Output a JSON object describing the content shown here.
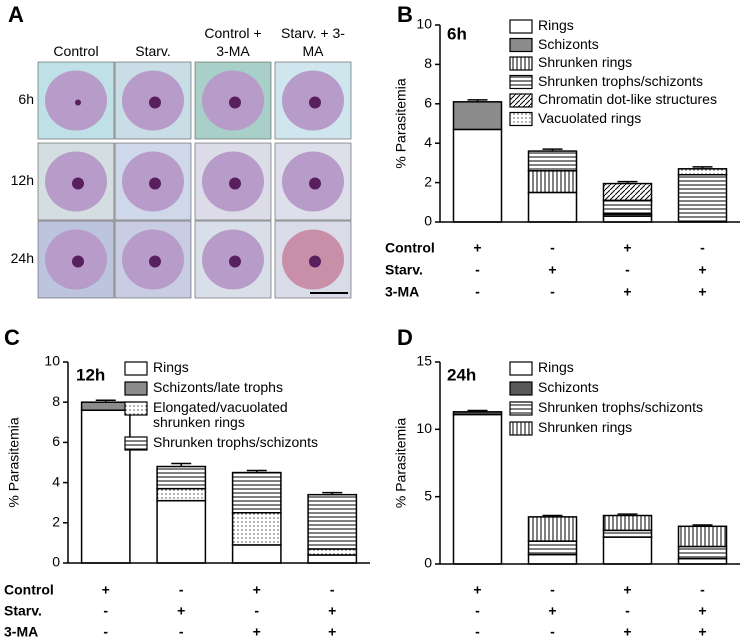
{
  "panel_a": {
    "label": "A",
    "columns": [
      "Control",
      "Starv.",
      "Control + 3-MA",
      "Starv. + 3-MA"
    ],
    "rows": [
      "6h",
      "12h",
      "24h"
    ]
  },
  "chart_data": [
    {
      "type": "bar",
      "stacked": true,
      "panel": "B",
      "title": "6h",
      "y_label": "% Parasitemia",
      "ylim": [
        0,
        10
      ],
      "yticks": [
        0,
        2,
        4,
        6,
        8,
        10
      ],
      "conditions": [
        {
          "name": "Control",
          "signs": [
            "+",
            "-",
            "+",
            "-"
          ]
        },
        {
          "name": "Starv.",
          "signs": [
            "-",
            "+",
            "-",
            "+"
          ]
        },
        {
          "name": "3-MA",
          "signs": [
            "-",
            "-",
            "+",
            "+"
          ]
        }
      ],
      "series": [
        {
          "name": "Rings",
          "color": "#ffffff",
          "pattern": "none",
          "values": [
            4.7,
            1.5,
            0.3,
            0
          ],
          "errors": [
            0.25,
            0.1,
            0.05,
            0
          ]
        },
        {
          "name": "Schizonts",
          "color": "#8c8c8c",
          "pattern": "none",
          "values": [
            1.4,
            0,
            0.1,
            0
          ],
          "errors": [
            0.1,
            0,
            0.05,
            0
          ]
        },
        {
          "name": "Shrunken rings",
          "color": "#ffffff",
          "pattern": "vertical",
          "values": [
            0,
            1.1,
            0,
            0
          ],
          "errors": [
            0,
            0.1,
            0,
            0
          ]
        },
        {
          "name": "Shrunken trophs/schizonts",
          "color": "#ffffff",
          "pattern": "horizontal",
          "values": [
            0,
            1.0,
            0.7,
            2.4
          ],
          "errors": [
            0,
            0.1,
            0.05,
            0.1
          ]
        },
        {
          "name": "Chromatin dot-like structures",
          "color": "#ffffff",
          "pattern": "diagonal",
          "values": [
            0,
            0,
            0.85,
            0
          ],
          "errors": [
            0,
            0,
            0.1,
            0
          ]
        },
        {
          "name": "Vacuolated rings",
          "color": "#ffffff",
          "pattern": "dotted",
          "values": [
            0,
            0,
            0,
            0.3
          ],
          "errors": [
            0,
            0,
            0,
            0.1
          ]
        }
      ]
    },
    {
      "type": "bar",
      "stacked": true,
      "panel": "C",
      "title": "12h",
      "y_label": "% Parasitemia",
      "ylim": [
        0,
        10
      ],
      "yticks": [
        0,
        2,
        4,
        6,
        8,
        10
      ],
      "conditions": [
        {
          "name": "Control",
          "signs": [
            "+",
            "-",
            "+",
            "-"
          ]
        },
        {
          "name": "Starv.",
          "signs": [
            "-",
            "+",
            "-",
            "+"
          ]
        },
        {
          "name": "3-MA",
          "signs": [
            "-",
            "-",
            "+",
            "+"
          ]
        }
      ],
      "series": [
        {
          "name": "Rings",
          "color": "#ffffff",
          "pattern": "none",
          "values": [
            7.6,
            3.1,
            0.9,
            0.4
          ],
          "errors": [
            0.15,
            0.15,
            0.05,
            0.05
          ]
        },
        {
          "name": "Schizonts/late trophs",
          "color": "#8c8c8c",
          "pattern": "none",
          "values": [
            0.4,
            0,
            0,
            0
          ],
          "errors": [
            0.1,
            0,
            0,
            0
          ]
        },
        {
          "name": "Elongated/vacuolated shrunken rings",
          "color": "#ffffff",
          "pattern": "dotted",
          "values": [
            0,
            0.6,
            1.6,
            0.3
          ],
          "errors": [
            0,
            0.1,
            0.1,
            0.05
          ]
        },
        {
          "name": "Shrunken trophs/schizonts",
          "color": "#ffffff",
          "pattern": "horizontal",
          "values": [
            0,
            1.1,
            2.0,
            2.7
          ],
          "errors": [
            0,
            0.15,
            0.1,
            0.1
          ]
        }
      ]
    },
    {
      "type": "bar",
      "stacked": true,
      "panel": "D",
      "title": "24h",
      "y_label": "% Parasitemia",
      "ylim": [
        0,
        15
      ],
      "yticks": [
        0,
        5,
        10,
        15
      ],
      "conditions": [
        {
          "signs": [
            "+",
            "-",
            "+",
            "-"
          ]
        },
        {
          "signs": [
            "-",
            "+",
            "-",
            "+"
          ]
        },
        {
          "signs": [
            "-",
            "-",
            "+",
            "+"
          ]
        }
      ],
      "series": [
        {
          "name": "Rings",
          "color": "#ffffff",
          "pattern": "none",
          "values": [
            11.1,
            0.7,
            2.0,
            0.4
          ],
          "errors": [
            0.2,
            0.1,
            0.2,
            0.1
          ]
        },
        {
          "name": "Schizonts",
          "color": "#595959",
          "pattern": "none",
          "values": [
            0.2,
            0,
            0,
            0
          ],
          "errors": [
            0.1,
            0,
            0,
            0
          ]
        },
        {
          "name": "Shrunken trophs/schizonts",
          "color": "#ffffff",
          "pattern": "horizontal",
          "values": [
            0,
            1.0,
            0.5,
            0.9
          ],
          "errors": [
            0,
            0.1,
            0.1,
            0.1
          ]
        },
        {
          "name": "Shrunken rings",
          "color": "#ffffff",
          "pattern": "vertical",
          "values": [
            0,
            1.8,
            1.1,
            1.5
          ],
          "errors": [
            0,
            0.1,
            0.1,
            0.1
          ]
        }
      ]
    }
  ]
}
